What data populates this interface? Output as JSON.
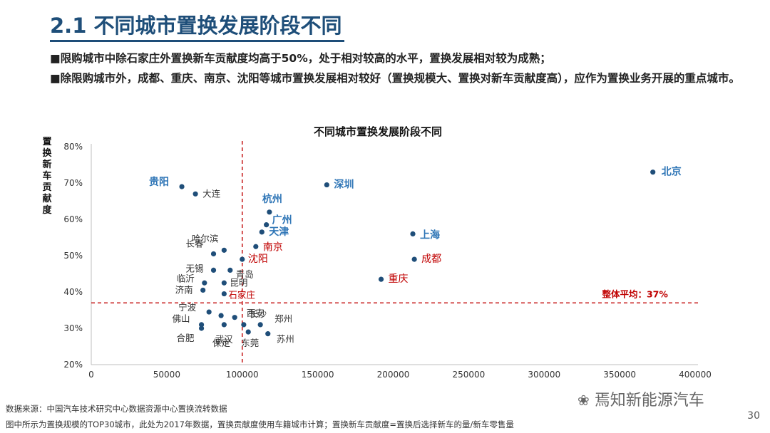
{
  "header": {
    "title": "2.1 不同城市置换发展阶段不同",
    "bullets": [
      "■限购城市中除石家庄外置换新车贡献度均高于50%，处于相对较高的水平，置换发展相对较为成熟；",
      "■除限购城市外，成都、重庆、南京、沈阳等城市置换发展相对较好（置换规模大、置换对新车贡献度高），应作为置换业务开展的重点城市。"
    ]
  },
  "chart_data": {
    "type": "scatter",
    "title": "不同城市置换发展阶段不同",
    "ylabel": "置换新车贡献度",
    "xlabel": "",
    "xlim": [
      0,
      400000
    ],
    "ylim": [
      20,
      80
    ],
    "x_ticks": [
      0,
      50000,
      100000,
      150000,
      200000,
      250000,
      300000,
      350000,
      400000
    ],
    "y_ticks": [
      20,
      30,
      40,
      50,
      60,
      70,
      80
    ],
    "y_tick_suffix": "%",
    "grid": false,
    "colors": {
      "point": "#1f4e79",
      "blue_label": "#2e75b6",
      "red_label": "#c00000",
      "gray_label": "#333333",
      "ref_line": "#c00000"
    },
    "reference_lines": [
      {
        "orientation": "vertical",
        "value": 100000
      },
      {
        "orientation": "horizontal",
        "value": 37,
        "label": "整体平均：37%"
      }
    ],
    "points": [
      {
        "name": "北京",
        "x": 372000,
        "y": 73.0,
        "style": "blue"
      },
      {
        "name": "贵阳",
        "x": 60000,
        "y": 69.0,
        "style": "blue"
      },
      {
        "name": "大连",
        "x": 69000,
        "y": 67.0,
        "style": "gray"
      },
      {
        "name": "深圳",
        "x": 156000,
        "y": 69.5,
        "style": "blue"
      },
      {
        "name": "杭州",
        "x": 118000,
        "y": 62.0,
        "style": "blue"
      },
      {
        "name": "广州",
        "x": 116000,
        "y": 58.5,
        "style": "blue"
      },
      {
        "name": "天津",
        "x": 113000,
        "y": 56.5,
        "style": "blue"
      },
      {
        "name": "上海",
        "x": 213000,
        "y": 56.0,
        "style": "blue"
      },
      {
        "name": "哈尔滨",
        "x": 88000,
        "y": 51.5,
        "style": "gray"
      },
      {
        "name": "长春",
        "x": 81000,
        "y": 50.5,
        "style": "gray"
      },
      {
        "name": "南京",
        "x": 109000,
        "y": 52.5,
        "style": "red"
      },
      {
        "name": "成都",
        "x": 214000,
        "y": 49.0,
        "style": "red"
      },
      {
        "name": "沈阳",
        "x": 100000,
        "y": 49.0,
        "style": "red"
      },
      {
        "name": "无锡",
        "x": 81000,
        "y": 46.0,
        "style": "gray"
      },
      {
        "name": "青岛",
        "x": 92000,
        "y": 46.0,
        "style": "gray"
      },
      {
        "name": "重庆",
        "x": 192000,
        "y": 43.5,
        "style": "red"
      },
      {
        "name": "临沂",
        "x": 75000,
        "y": 42.5,
        "style": "gray"
      },
      {
        "name": "昆明",
        "x": 88000,
        "y": 42.5,
        "style": "gray"
      },
      {
        "name": "济南",
        "x": 74000,
        "y": 40.5,
        "style": "gray"
      },
      {
        "name": "石家庄",
        "x": 88000,
        "y": 39.5,
        "style": "red"
      },
      {
        "name": "宁波",
        "x": 78000,
        "y": 34.5,
        "style": "gray"
      },
      {
        "name": "长沙",
        "x": 95000,
        "y": 33.0,
        "style": "gray"
      },
      {
        "name": "佛山",
        "x": 73000,
        "y": 31.0,
        "style": "gray"
      },
      {
        "name": "西安",
        "x": 101000,
        "y": 31.0,
        "style": "gray"
      },
      {
        "name": "郑州",
        "x": 112000,
        "y": 31.0,
        "style": "gray"
      },
      {
        "name": "合肥",
        "x": 73000,
        "y": 30.0,
        "style": "gray"
      },
      {
        "name": "保定",
        "x": 88000,
        "y": 31.0,
        "style": "gray"
      },
      {
        "name": "东莞",
        "x": 104000,
        "y": 29.0,
        "style": "gray"
      },
      {
        "name": "苏州",
        "x": 117000,
        "y": 28.5,
        "style": "gray"
      },
      {
        "name": "武汉",
        "x": 86000,
        "y": 33.5,
        "style": "gray"
      }
    ]
  },
  "footer": {
    "source": "数据来源：中国汽车技术研究中心数据资源中心置换流转数据",
    "note": "图中所示为置换规模的TOP30城市，此处为2017年数据，置换贡献度使用车籍城市计算；置换新车贡献度=置换后选择新车的量/新车零售量",
    "page": "30",
    "watermark": "焉知新能源汽车"
  }
}
